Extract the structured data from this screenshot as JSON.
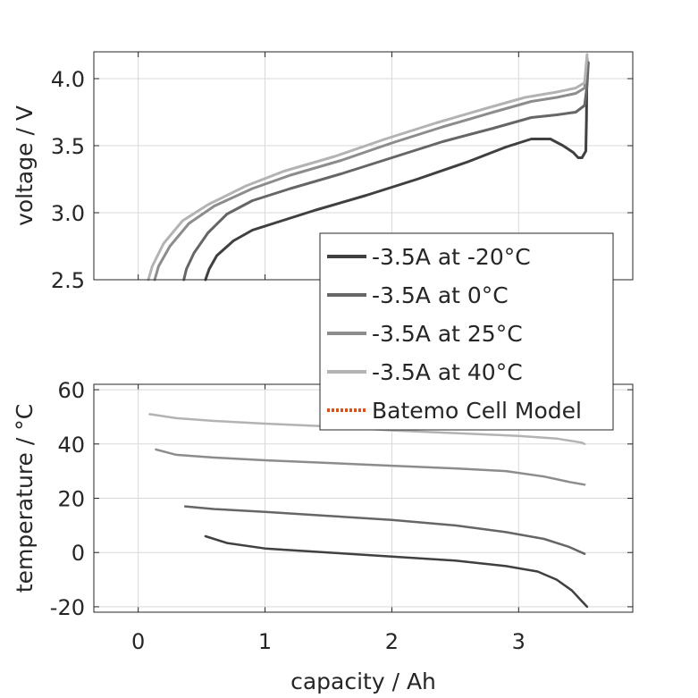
{
  "chart_data": [
    {
      "type": "line",
      "ylabel": "voltage / V",
      "xlim": [
        -0.35,
        3.9
      ],
      "ylim": [
        2.5,
        4.2
      ],
      "xticks": [
        "0",
        "1",
        "2",
        "3"
      ],
      "yticks": [
        "2.5",
        "3.0",
        "3.5",
        "4.0"
      ],
      "grid": true,
      "series": [
        {
          "name": "-3.5A at -20°C",
          "color": "#404040",
          "points": [
            [
              0.53,
              2.5
            ],
            [
              0.56,
              2.58
            ],
            [
              0.62,
              2.68
            ],
            [
              0.75,
              2.79
            ],
            [
              0.9,
              2.87
            ],
            [
              1.1,
              2.93
            ],
            [
              1.4,
              3.02
            ],
            [
              1.8,
              3.13
            ],
            [
              2.2,
              3.25
            ],
            [
              2.6,
              3.38
            ],
            [
              2.9,
              3.49
            ],
            [
              3.1,
              3.55
            ],
            [
              3.25,
              3.55
            ],
            [
              3.35,
              3.5
            ],
            [
              3.43,
              3.45
            ],
            [
              3.47,
              3.41
            ],
            [
              3.5,
              3.41
            ],
            [
              3.53,
              3.46
            ],
            [
              3.535,
              3.7
            ],
            [
              3.54,
              4.15
            ]
          ]
        },
        {
          "name": "-3.5A at 0°C",
          "color": "#666666",
          "points": [
            [
              0.36,
              2.5
            ],
            [
              0.38,
              2.58
            ],
            [
              0.44,
              2.7
            ],
            [
              0.55,
              2.85
            ],
            [
              0.7,
              2.99
            ],
            [
              0.9,
              3.09
            ],
            [
              1.2,
              3.18
            ],
            [
              1.6,
              3.29
            ],
            [
              2.0,
              3.41
            ],
            [
              2.4,
              3.53
            ],
            [
              2.8,
              3.63
            ],
            [
              3.1,
              3.71
            ],
            [
              3.3,
              3.73
            ],
            [
              3.45,
              3.75
            ],
            [
              3.52,
              3.8
            ],
            [
              3.54,
              3.95
            ],
            [
              3.55,
              4.12
            ]
          ]
        },
        {
          "name": "-3.5A at 25°C",
          "color": "#8c8c8c",
          "points": [
            [
              0.13,
              2.5
            ],
            [
              0.16,
              2.6
            ],
            [
              0.25,
              2.75
            ],
            [
              0.4,
              2.92
            ],
            [
              0.6,
              3.05
            ],
            [
              0.9,
              3.18
            ],
            [
              1.2,
              3.28
            ],
            [
              1.6,
              3.39
            ],
            [
              2.0,
              3.52
            ],
            [
              2.4,
              3.64
            ],
            [
              2.8,
              3.75
            ],
            [
              3.1,
              3.83
            ],
            [
              3.3,
              3.86
            ],
            [
              3.45,
              3.89
            ],
            [
              3.52,
              3.93
            ],
            [
              3.54,
              4.15
            ]
          ]
        },
        {
          "name": "-3.5A at 40°C",
          "color": "#b3b3b3",
          "points": [
            [
              0.08,
              2.5
            ],
            [
              0.11,
              2.6
            ],
            [
              0.2,
              2.77
            ],
            [
              0.35,
              2.94
            ],
            [
              0.55,
              3.06
            ],
            [
              0.85,
              3.2
            ],
            [
              1.15,
              3.31
            ],
            [
              1.55,
              3.42
            ],
            [
              1.95,
              3.55
            ],
            [
              2.35,
              3.67
            ],
            [
              2.75,
              3.78
            ],
            [
              3.05,
              3.86
            ],
            [
              3.3,
              3.9
            ],
            [
              3.45,
              3.93
            ],
            [
              3.52,
              3.97
            ],
            [
              3.54,
              4.18
            ]
          ]
        }
      ]
    },
    {
      "type": "line",
      "xlabel": "capacity / Ah",
      "ylabel": "temperature / °C",
      "xlim": [
        -0.35,
        3.9
      ],
      "ylim": [
        -22,
        62
      ],
      "xticks": [
        "0",
        "1",
        "2",
        "3"
      ],
      "yticks": [
        "-20",
        "0",
        "20",
        "40",
        "60"
      ],
      "grid": true,
      "series": [
        {
          "name": "-3.5A at -20°C",
          "color": "#404040",
          "points": [
            [
              0.53,
              6
            ],
            [
              0.7,
              3.5
            ],
            [
              1.0,
              1.5
            ],
            [
              1.5,
              0
            ],
            [
              2.0,
              -1.5
            ],
            [
              2.5,
              -3
            ],
            [
              2.9,
              -5
            ],
            [
              3.15,
              -7
            ],
            [
              3.3,
              -10
            ],
            [
              3.42,
              -14
            ],
            [
              3.5,
              -18
            ],
            [
              3.54,
              -20
            ]
          ]
        },
        {
          "name": "-3.5A at 0°C",
          "color": "#666666",
          "points": [
            [
              0.37,
              17
            ],
            [
              0.6,
              16
            ],
            [
              1.0,
              15
            ],
            [
              1.5,
              13.5
            ],
            [
              2.0,
              12
            ],
            [
              2.5,
              10
            ],
            [
              2.9,
              7.5
            ],
            [
              3.2,
              5
            ],
            [
              3.4,
              2
            ],
            [
              3.52,
              -0.5
            ]
          ]
        },
        {
          "name": "-3.5A at 25°C",
          "color": "#8c8c8c",
          "points": [
            [
              0.14,
              38
            ],
            [
              0.3,
              36
            ],
            [
              0.6,
              35
            ],
            [
              1.0,
              34
            ],
            [
              1.5,
              33
            ],
            [
              2.0,
              32
            ],
            [
              2.5,
              31
            ],
            [
              2.9,
              30
            ],
            [
              3.2,
              28
            ],
            [
              3.4,
              26
            ],
            [
              3.52,
              25
            ]
          ]
        },
        {
          "name": "-3.5A at 40°C",
          "color": "#b3b3b3",
          "points": [
            [
              0.09,
              51
            ],
            [
              0.3,
              49.5
            ],
            [
              0.6,
              48.5
            ],
            [
              1.0,
              47.5
            ],
            [
              1.5,
              46.5
            ],
            [
              2.0,
              45
            ],
            [
              2.5,
              44
            ],
            [
              3.0,
              43
            ],
            [
              3.3,
              42
            ],
            [
              3.5,
              40.5
            ],
            [
              3.52,
              40
            ]
          ]
        }
      ]
    }
  ],
  "legend": {
    "placement": "overlapping both plots, right",
    "entries": [
      {
        "label": "-3.5A at -20°C",
        "color": "#404040",
        "style": "solid"
      },
      {
        "label": "-3.5A at 0°C",
        "color": "#666666",
        "style": "solid"
      },
      {
        "label": "-3.5A at 25°C",
        "color": "#8c8c8c",
        "style": "solid"
      },
      {
        "label": "-3.5A at 40°C",
        "color": "#b3b3b3",
        "style": "solid"
      },
      {
        "label": "Batemo Cell Model",
        "color": "#d95319",
        "style": "dotted"
      }
    ]
  }
}
